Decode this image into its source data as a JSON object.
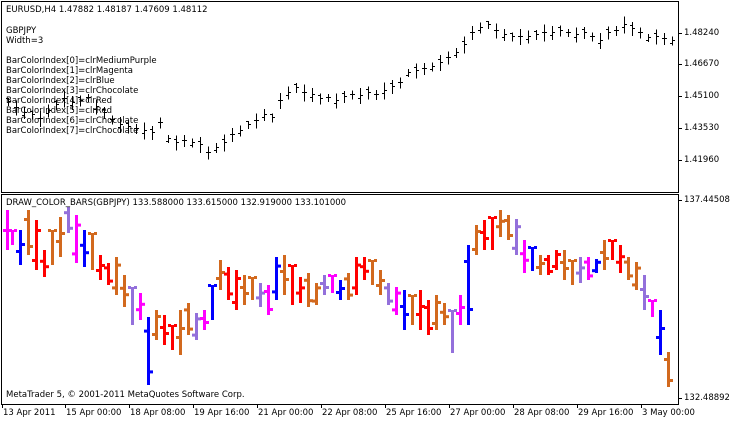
{
  "upper_chart": {
    "header": "EURUSD,H4  1.47882 1.48187 1.47609 1.48112",
    "info_lines": [
      "GBPJPY",
      "Width=3",
      "",
      "BarColorIndex[0]=clrMediumPurple",
      "BarColorIndex[1]=clrMagenta",
      "BarColorIndex[2]=clrBlue",
      "BarColorIndex[3]=clrChocolate",
      "BarColorIndex[4]=clrRed",
      "BarColorIndex[5]=clrRed",
      "BarColorIndex[6]=clrChocolate",
      "BarColorIndex[7]=clrChocolate"
    ],
    "price_labels": [
      "1.48240",
      "1.46670",
      "1.45100",
      "1.43530",
      "1.41960"
    ],
    "bar_color": "#000000"
  },
  "lower_chart": {
    "header": "DRAW_COLOR_BARS(GBPJPY) 133.588000 133.615000 132.919000 133.101000",
    "price_max": "137.445080",
    "price_min": "132.488920",
    "copyright": "MetaTrader 5, © 2001-2011 MetaQuotes Software Corp.",
    "palette": {
      "MediumPurple": "#9370DB",
      "Magenta": "#FF00FF",
      "Blue": "#0000FF",
      "Chocolate": "#D2691E",
      "Red": "#FF0000"
    }
  },
  "time_axis": [
    "13 Apr 2011",
    "15 Apr 00:00",
    "18 Apr 08:00",
    "19 Apr 16:00",
    "21 Apr 00:00",
    "22 Apr 08:00",
    "25 Apr 16:00",
    "27 Apr 00:00",
    "28 Apr 08:00",
    "29 Apr 16:00",
    "3 May 00:00"
  ],
  "chart_data": [
    {
      "type": "ohlc",
      "title": "EURUSD,H4",
      "ylim": [
        1.41,
        1.492
      ],
      "yticks": [
        1.4824,
        1.4667,
        1.451,
        1.4353,
        1.4196
      ],
      "last_bar": {
        "open": 1.47882,
        "high": 1.48187,
        "low": 1.47609,
        "close": 1.48112
      }
    },
    {
      "type": "ohlc",
      "title": "DRAW_COLOR_BARS(GBPJPY)",
      "ylim": [
        132.48892,
        137.44508
      ],
      "last_bar": {
        "open": 133.588,
        "high": 133.615,
        "low": 132.919,
        "close": 133.101
      },
      "color_indexes": [
        "clrMediumPurple",
        "clrMagenta",
        "clrBlue",
        "clrChocolate",
        "clrRed",
        "clrRed",
        "clrChocolate",
        "clrChocolate"
      ]
    }
  ]
}
